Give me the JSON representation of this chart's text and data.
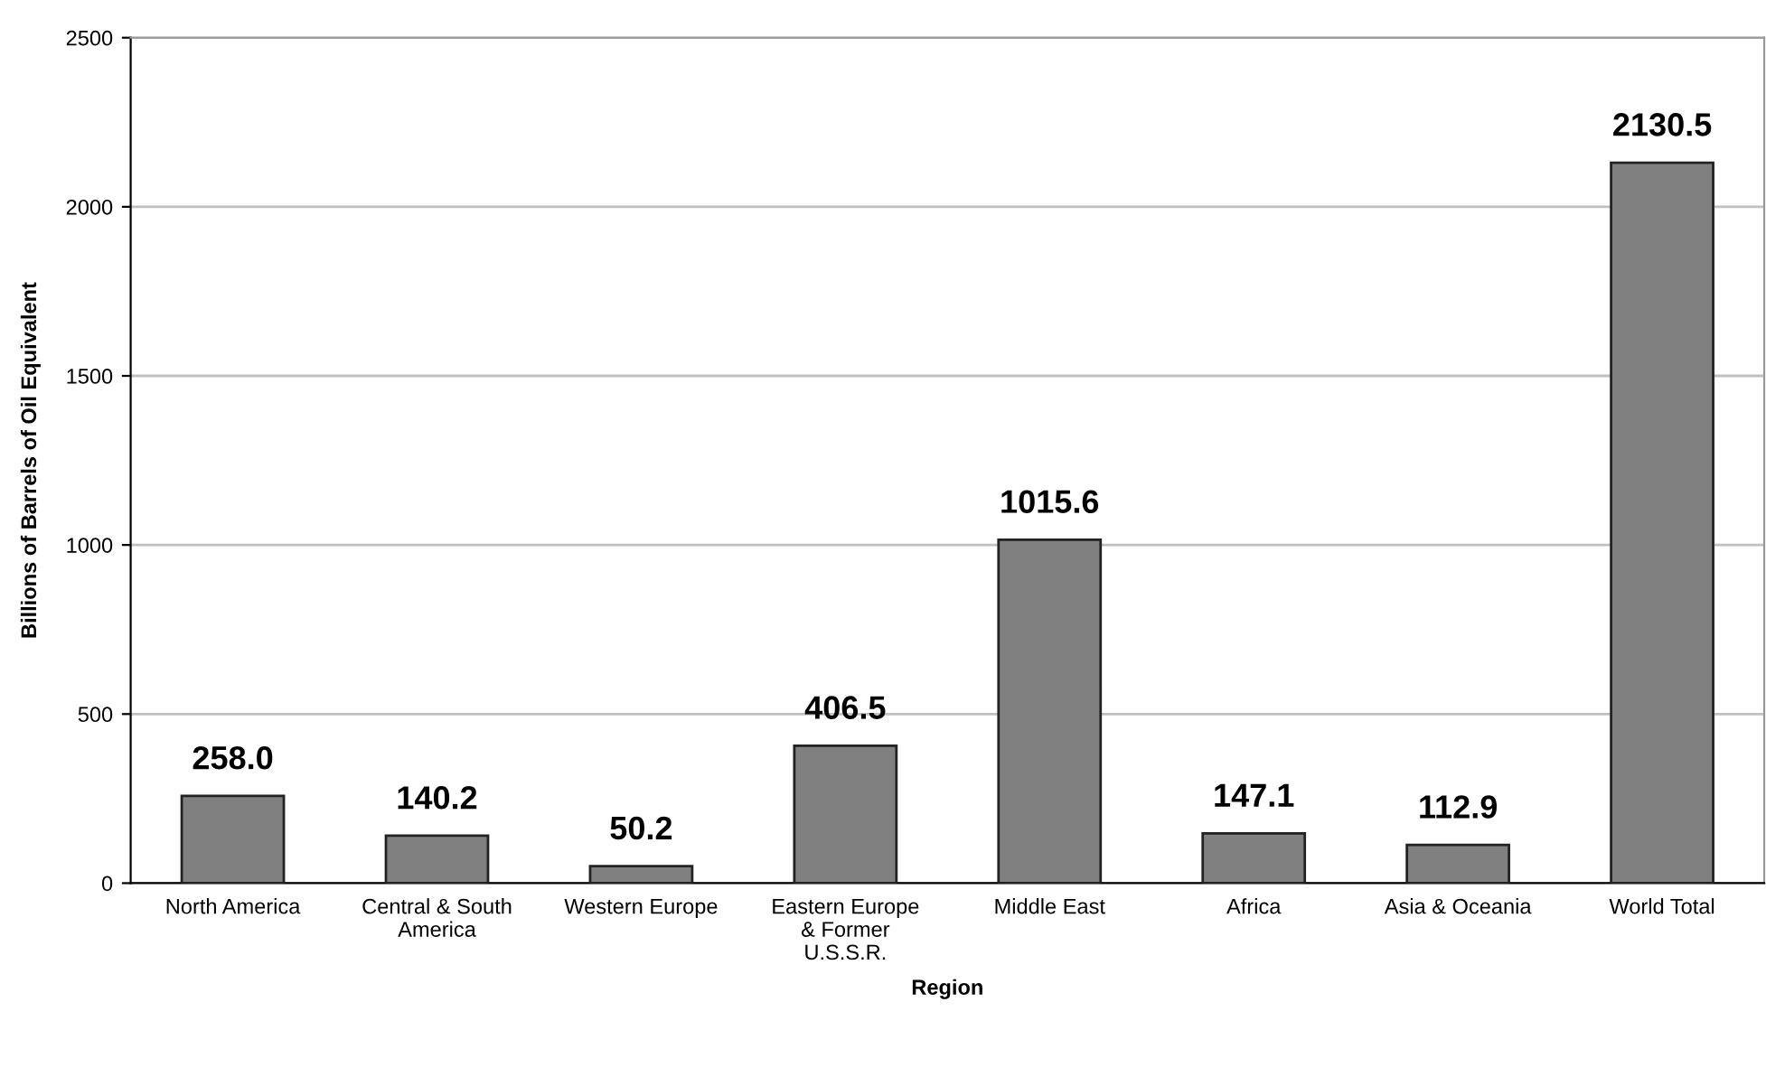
{
  "chart_data": {
    "type": "bar",
    "categories": [
      "North America",
      "Central & South\nAmerica",
      "Western Europe",
      "Eastern Europe\n& Former\nU.S.S.R.",
      "Middle East",
      "Africa",
      "Asia & Oceania",
      "World Total"
    ],
    "values": [
      258.0,
      140.2,
      50.2,
      406.5,
      1015.6,
      147.1,
      112.9,
      2130.5
    ],
    "value_labels": [
      "258.0",
      "140.2",
      "50.2",
      "406.5",
      "1015.6",
      "147.1",
      "112.9",
      "2130.5"
    ],
    "color": "#808080",
    "xlabel": "Region",
    "ylabel": "Billions of Barrels of Oil Equivalent",
    "ylim": [
      0,
      2500
    ],
    "yticks": [
      0,
      500,
      1000,
      1500,
      2000,
      2500
    ],
    "grid": "y"
  }
}
